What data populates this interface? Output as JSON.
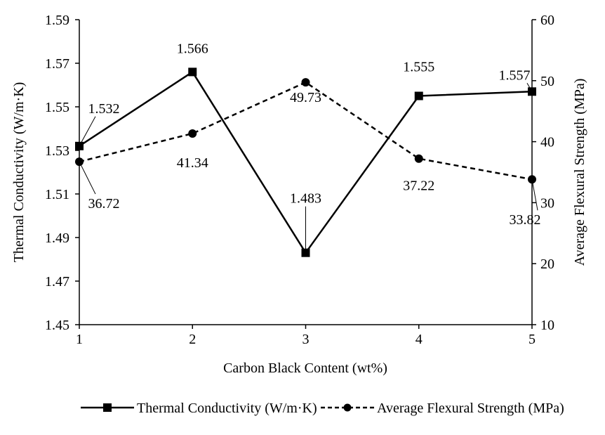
{
  "chart_data": {
    "type": "line",
    "title": "",
    "xlabel": "Carbon Black Content (wt%)",
    "ylabel": "Thermal Conductivity (W/m·K)",
    "y2label": "Average Flexural Strength (MPa)",
    "x": [
      1,
      2,
      3,
      4,
      5
    ],
    "xticks": [
      "1",
      "2",
      "3",
      "4",
      "5"
    ],
    "ylim": [
      1.45,
      1.59
    ],
    "yticks": [
      "1.45",
      "1.47",
      "1.49",
      "1.51",
      "1.53",
      "1.55",
      "1.57",
      "1.59"
    ],
    "y2lim": [
      10,
      60
    ],
    "y2ticks": [
      "10",
      "20",
      "30",
      "40",
      "50",
      "60"
    ],
    "grid": false,
    "legend_position": "bottom",
    "series": [
      {
        "name": "Thermal Conductivity (W/m·K)",
        "axis": "left",
        "style": "solid",
        "marker": "square",
        "values": [
          1.532,
          1.566,
          1.483,
          1.555,
          1.557
        ],
        "labels": [
          "1.532",
          "1.566",
          "1.483",
          "1.555",
          "1.557"
        ]
      },
      {
        "name": "Average Flexural Strength (MPa)",
        "axis": "right",
        "style": "dashed",
        "marker": "circle",
        "values": [
          36.72,
          41.34,
          49.73,
          37.22,
          33.82
        ],
        "labels": [
          "36.72",
          "41.34",
          "49.73",
          "37.22",
          "33.82"
        ]
      }
    ]
  }
}
